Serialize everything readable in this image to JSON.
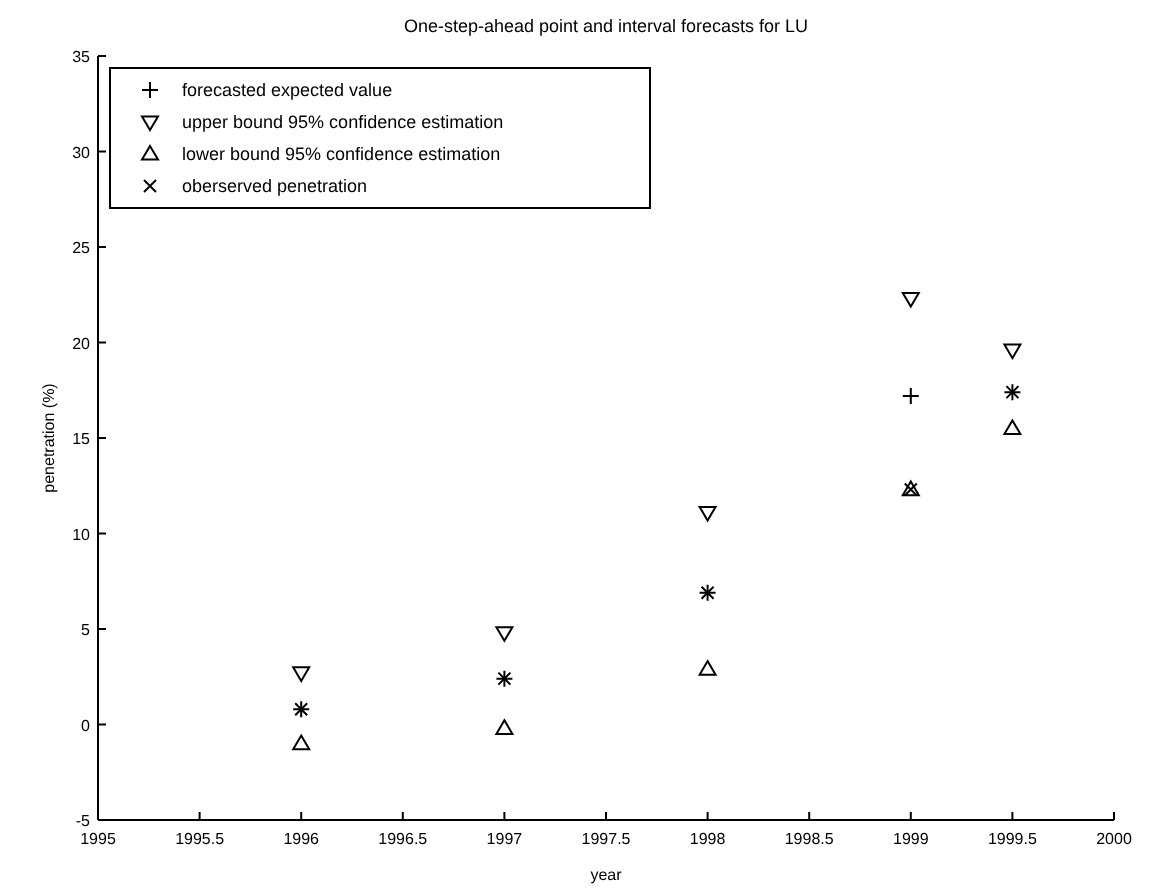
{
  "chart_data": {
    "type": "scatter",
    "title": "One-step-ahead point and interval forecasts for LU",
    "xlabel": "year",
    "ylabel": "penetration (%)",
    "x": [
      1996,
      1997,
      1998,
      1999,
      1999.5
    ],
    "series": [
      {
        "name": "forecasted expected value",
        "color": "#000000",
        "marker": "plus",
        "values": [
          0.8,
          2.4,
          6.9,
          17.2,
          17.4
        ]
      },
      {
        "name": "upper bound 95% confidence estimation",
        "color": "#000000",
        "marker": "triangle-down",
        "values": [
          2.7,
          4.8,
          11.1,
          22.3,
          19.6
        ]
      },
      {
        "name": "lower bound 95% confidence estimation",
        "color": "#000000",
        "marker": "triangle",
        "values": [
          -1.0,
          -0.2,
          2.9,
          12.3,
          15.5
        ]
      },
      {
        "name": "oberserved penetration",
        "color": "#000000",
        "marker": "x",
        "values": [
          0.8,
          2.4,
          6.9,
          12.3,
          17.4
        ]
      }
    ],
    "xlim": [
      1995,
      2000
    ],
    "xticks": [
      1995,
      1995.5,
      1996,
      1996.5,
      1997,
      1997.5,
      1998,
      1998.5,
      1999,
      1999.5,
      2000
    ],
    "ylim": [
      -5,
      35
    ],
    "yticks": [
      -5,
      0,
      5,
      10,
      15,
      20,
      25,
      30,
      35
    ],
    "grid": false,
    "legend": "top left"
  }
}
